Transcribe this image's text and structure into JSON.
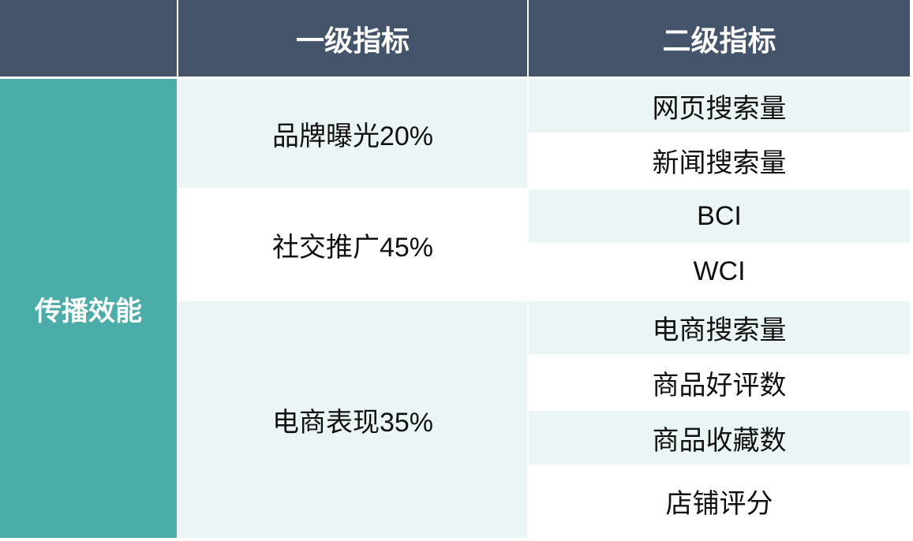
{
  "header": {
    "col1": "",
    "col2": "一级指标",
    "col3": "二级指标"
  },
  "category": "传播效能",
  "groups": [
    {
      "label": "品牌曝光20%",
      "items": [
        "网页搜索量",
        "新闻搜索量"
      ]
    },
    {
      "label": "社交推广45%",
      "items": [
        "BCI",
        "WCI"
      ]
    },
    {
      "label": "电商表现35%",
      "items": [
        "电商搜索量",
        "商品好评数",
        "商品收藏数",
        "店铺评分"
      ]
    }
  ],
  "colors": {
    "header": "#44546a",
    "category": "#4aada8",
    "stripe": "#ebf5f5"
  }
}
